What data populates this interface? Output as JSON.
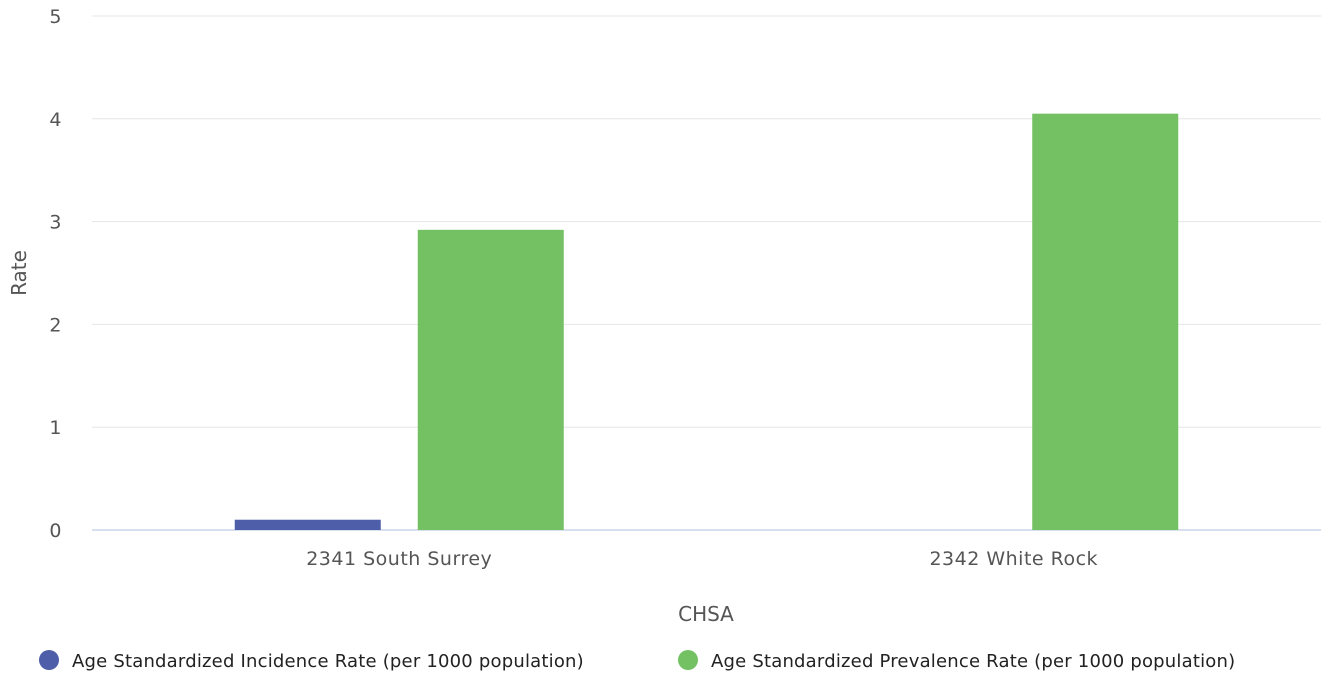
{
  "chart_data": {
    "type": "bar",
    "title": "",
    "xlabel": "CHSA",
    "ylabel": "Rate",
    "ylim": [
      0,
      5
    ],
    "yticks": [
      "0",
      "1",
      "2",
      "3",
      "4",
      "5"
    ],
    "categories": [
      "2341 South Surrey",
      "2342 White Rock"
    ],
    "series": [
      {
        "name": "Age Standardized Incidence Rate (per 1000 population)",
        "color": "#4f5ea8",
        "values": [
          0.1,
          null
        ]
      },
      {
        "name": "Age Standardized Prevalence Rate (per 1000 population)",
        "color": "#73c163",
        "values": [
          2.92,
          4.05
        ]
      }
    ],
    "grid": true,
    "legend_position": "bottom"
  }
}
